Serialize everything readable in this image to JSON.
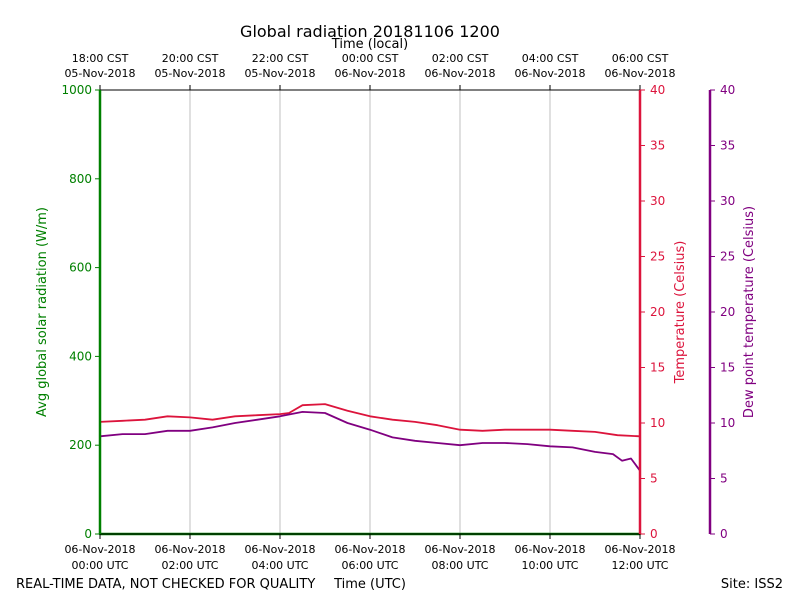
{
  "chart_data": {
    "type": "line",
    "title": "Global radiation 20181106 1200",
    "top_axis_label": "Time (local)",
    "xlabel": "Time (UTC)",
    "footer_left": "REAL-TIME DATA, NOT CHECKED FOR QUALITY",
    "footer_right": "Site: ISS2",
    "x_ticks_bottom": [
      {
        "line1": "06-Nov-2018",
        "line2": "00:00 UTC"
      },
      {
        "line1": "06-Nov-2018",
        "line2": "02:00 UTC"
      },
      {
        "line1": "06-Nov-2018",
        "line2": "04:00 UTC"
      },
      {
        "line1": "06-Nov-2018",
        "line2": "06:00 UTC"
      },
      {
        "line1": "06-Nov-2018",
        "line2": "08:00 UTC"
      },
      {
        "line1": "06-Nov-2018",
        "line2": "10:00 UTC"
      },
      {
        "line1": "06-Nov-2018",
        "line2": "12:00 UTC"
      }
    ],
    "x_ticks_top": [
      {
        "line1": "18:00 CST",
        "line2": "05-Nov-2018"
      },
      {
        "line1": "20:00 CST",
        "line2": "05-Nov-2018"
      },
      {
        "line1": "22:00 CST",
        "line2": "05-Nov-2018"
      },
      {
        "line1": "00:00 CST",
        "line2": "06-Nov-2018"
      },
      {
        "line1": "02:00 CST",
        "line2": "06-Nov-2018"
      },
      {
        "line1": "04:00 CST",
        "line2": "06-Nov-2018"
      },
      {
        "line1": "06:00 CST",
        "line2": "06-Nov-2018"
      }
    ],
    "xlim_hours_utc": [
      0,
      12
    ],
    "grid": "vertical lines at major x ticks",
    "axes": {
      "left": {
        "label": "Avg global solar radiation (W/m)",
        "ylim": [
          0,
          1000
        ],
        "ticks": [
          0,
          200,
          400,
          600,
          800,
          1000
        ],
        "color": "#008000"
      },
      "right1": {
        "label": "Temperature (Celsius)",
        "ylim": [
          0,
          40
        ],
        "ticks": [
          0,
          5,
          10,
          15,
          20,
          25,
          30,
          35,
          40
        ],
        "color": "#dc143c"
      },
      "right2": {
        "label": "Dew point temperature (Celsius)",
        "ylim": [
          0,
          40
        ],
        "ticks": [
          0,
          5,
          10,
          15,
          20,
          25,
          30,
          35,
          40
        ],
        "color": "#800080"
      }
    },
    "series": [
      {
        "axis": "left",
        "color": "#008000",
        "x_hours_utc": [
          0,
          12
        ],
        "values": [
          0,
          0
        ]
      },
      {
        "axis": "right1",
        "color": "#dc143c",
        "x_hours_utc": [
          0,
          0.5,
          1.0,
          1.5,
          2.0,
          2.5,
          3.0,
          3.5,
          4.0,
          4.2,
          4.5,
          5.0,
          5.5,
          6.0,
          6.5,
          7.0,
          7.5,
          8.0,
          8.5,
          9.0,
          9.5,
          10.0,
          10.5,
          11.0,
          11.5,
          12.0
        ],
        "values": [
          10.1,
          10.2,
          10.3,
          10.6,
          10.5,
          10.3,
          10.6,
          10.7,
          10.8,
          10.9,
          11.6,
          11.7,
          11.1,
          10.6,
          10.3,
          10.1,
          9.8,
          9.4,
          9.3,
          9.4,
          9.4,
          9.4,
          9.3,
          9.2,
          8.9,
          8.8
        ]
      },
      {
        "axis": "right2",
        "color": "#800080",
        "x_hours_utc": [
          0,
          0.5,
          1.0,
          1.5,
          2.0,
          2.5,
          3.0,
          3.5,
          4.0,
          4.5,
          5.0,
          5.5,
          6.0,
          6.5,
          7.0,
          7.5,
          8.0,
          8.5,
          9.0,
          9.5,
          10.0,
          10.5,
          11.0,
          11.4,
          11.6,
          11.8,
          12.0
        ],
        "values": [
          8.8,
          9.0,
          9.0,
          9.3,
          9.3,
          9.6,
          10.0,
          10.3,
          10.6,
          11.0,
          10.9,
          10.0,
          9.4,
          8.7,
          8.4,
          8.2,
          8.0,
          8.2,
          8.2,
          8.1,
          7.9,
          7.8,
          7.4,
          7.2,
          6.6,
          6.8,
          5.7
        ]
      }
    ]
  }
}
